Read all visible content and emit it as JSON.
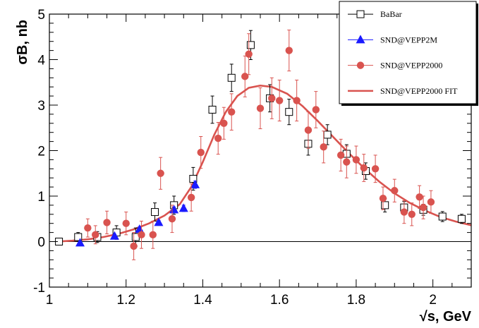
{
  "chart_data": {
    "type": "scatter",
    "title": "",
    "xlabel": "√s, GeV",
    "ylabel": "σB, nb",
    "xlim": [
      1.0,
      2.1
    ],
    "ylim": [
      -1,
      5
    ],
    "x_ticks": [
      "1",
      "1.2",
      "1.4",
      "1.6",
      "1.8",
      "2"
    ],
    "y_ticks": [
      "-1",
      "0",
      "1",
      "2",
      "3",
      "4",
      "5"
    ],
    "zero_line": 0,
    "grid": false,
    "legend_position": "top-right",
    "series": [
      {
        "name": "BaBar",
        "marker": "open-square",
        "color": "#000000",
        "points": [
          {
            "x": 1.025,
            "y": 0.0,
            "err": 0.05
          },
          {
            "x": 1.075,
            "y": 0.1,
            "err": 0.1
          },
          {
            "x": 1.125,
            "y": 0.1,
            "err": 0.12
          },
          {
            "x": 1.175,
            "y": 0.2,
            "err": 0.15
          },
          {
            "x": 1.225,
            "y": 0.1,
            "err": 0.2
          },
          {
            "x": 1.275,
            "y": 0.65,
            "err": 0.2
          },
          {
            "x": 1.325,
            "y": 0.8,
            "err": 0.2
          },
          {
            "x": 1.375,
            "y": 1.38,
            "err": 0.25
          },
          {
            "x": 1.425,
            "y": 2.9,
            "err": 0.3
          },
          {
            "x": 1.475,
            "y": 3.6,
            "err": 0.3
          },
          {
            "x": 1.525,
            "y": 4.32,
            "err": 0.32
          },
          {
            "x": 1.575,
            "y": 3.15,
            "err": 0.3
          },
          {
            "x": 1.625,
            "y": 2.85,
            "err": 0.28
          },
          {
            "x": 1.675,
            "y": 2.15,
            "err": 0.25
          },
          {
            "x": 1.725,
            "y": 2.35,
            "err": 0.22
          },
          {
            "x": 1.775,
            "y": 1.93,
            "err": 0.2
          },
          {
            "x": 1.825,
            "y": 1.55,
            "err": 0.18
          },
          {
            "x": 1.875,
            "y": 0.8,
            "err": 0.15
          },
          {
            "x": 1.925,
            "y": 0.75,
            "err": 0.13
          },
          {
            "x": 1.975,
            "y": 0.7,
            "err": 0.12
          },
          {
            "x": 2.025,
            "y": 0.55,
            "err": 0.11
          },
          {
            "x": 2.075,
            "y": 0.5,
            "err": 0.1
          }
        ]
      },
      {
        "name": "SND@VEPP2M",
        "marker": "filled-triangle",
        "color": "#1a1aff",
        "points": [
          {
            "x": 1.08,
            "y": -0.03,
            "err": 0.03
          },
          {
            "x": 1.17,
            "y": 0.12,
            "err": 0.04
          },
          {
            "x": 1.235,
            "y": 0.27,
            "err": 0.05
          },
          {
            "x": 1.285,
            "y": 0.42,
            "err": 0.05
          },
          {
            "x": 1.325,
            "y": 0.7,
            "err": 0.06
          },
          {
            "x": 1.35,
            "y": 0.73,
            "err": 0.07
          },
          {
            "x": 1.38,
            "y": 1.25,
            "err": 0.08
          }
        ]
      },
      {
        "name": "SND@VEPP2000",
        "marker": "filled-circle",
        "color": "#d9534f",
        "points": [
          {
            "x": 1.1,
            "y": 0.3,
            "err": 0.2
          },
          {
            "x": 1.12,
            "y": 0.15,
            "err": 0.2
          },
          {
            "x": 1.15,
            "y": 0.42,
            "err": 0.25
          },
          {
            "x": 1.2,
            "y": 0.4,
            "err": 0.25
          },
          {
            "x": 1.22,
            "y": -0.1,
            "err": 0.3
          },
          {
            "x": 1.24,
            "y": 0.15,
            "err": 0.3
          },
          {
            "x": 1.27,
            "y": 0.15,
            "err": 0.3
          },
          {
            "x": 1.29,
            "y": 1.5,
            "err": 0.35
          },
          {
            "x": 1.32,
            "y": 0.5,
            "err": 0.3
          },
          {
            "x": 1.37,
            "y": 0.97,
            "err": 0.3
          },
          {
            "x": 1.395,
            "y": 1.96,
            "err": 0.35
          },
          {
            "x": 1.44,
            "y": 2.27,
            "err": 0.35
          },
          {
            "x": 1.455,
            "y": 2.6,
            "err": 0.35
          },
          {
            "x": 1.475,
            "y": 2.85,
            "err": 0.4
          },
          {
            "x": 1.51,
            "y": 3.63,
            "err": 0.45
          },
          {
            "x": 1.52,
            "y": 4.12,
            "err": 0.45
          },
          {
            "x": 1.55,
            "y": 2.93,
            "err": 0.45
          },
          {
            "x": 1.58,
            "y": 3.15,
            "err": 0.45
          },
          {
            "x": 1.6,
            "y": 3.1,
            "err": 0.45
          },
          {
            "x": 1.625,
            "y": 4.2,
            "err": 0.45
          },
          {
            "x": 1.645,
            "y": 3.1,
            "err": 0.45
          },
          {
            "x": 1.675,
            "y": 2.45,
            "err": 0.4
          },
          {
            "x": 1.695,
            "y": 2.9,
            "err": 0.4
          },
          {
            "x": 1.715,
            "y": 2.08,
            "err": 0.35
          },
          {
            "x": 1.76,
            "y": 1.9,
            "err": 0.35
          },
          {
            "x": 1.775,
            "y": 1.75,
            "err": 0.35
          },
          {
            "x": 1.8,
            "y": 1.8,
            "err": 0.3
          },
          {
            "x": 1.82,
            "y": 1.62,
            "err": 0.3
          },
          {
            "x": 1.85,
            "y": 1.6,
            "err": 0.3
          },
          {
            "x": 1.87,
            "y": 0.95,
            "err": 0.25
          },
          {
            "x": 1.9,
            "y": 1.12,
            "err": 0.25
          },
          {
            "x": 1.925,
            "y": 0.65,
            "err": 0.25
          },
          {
            "x": 1.945,
            "y": 0.6,
            "err": 0.25
          },
          {
            "x": 1.965,
            "y": 0.98,
            "err": 0.25
          },
          {
            "x": 1.975,
            "y": 0.75,
            "err": 0.25
          },
          {
            "x": 1.995,
            "y": 0.87,
            "err": 0.25
          }
        ]
      },
      {
        "name": "SND@VEPP2000 FIT",
        "marker": "line",
        "color": "#d9534f",
        "points": [
          {
            "x": 1.02,
            "y": 0.0
          },
          {
            "x": 1.06,
            "y": 0.02
          },
          {
            "x": 1.1,
            "y": 0.05
          },
          {
            "x": 1.14,
            "y": 0.1
          },
          {
            "x": 1.18,
            "y": 0.17
          },
          {
            "x": 1.22,
            "y": 0.27
          },
          {
            "x": 1.26,
            "y": 0.4
          },
          {
            "x": 1.3,
            "y": 0.57
          },
          {
            "x": 1.34,
            "y": 0.82
          },
          {
            "x": 1.37,
            "y": 1.2
          },
          {
            "x": 1.4,
            "y": 1.75
          },
          {
            "x": 1.43,
            "y": 2.35
          },
          {
            "x": 1.46,
            "y": 2.85
          },
          {
            "x": 1.49,
            "y": 3.2
          },
          {
            "x": 1.52,
            "y": 3.38
          },
          {
            "x": 1.55,
            "y": 3.43
          },
          {
            "x": 1.58,
            "y": 3.4
          },
          {
            "x": 1.62,
            "y": 3.25
          },
          {
            "x": 1.66,
            "y": 2.98
          },
          {
            "x": 1.7,
            "y": 2.65
          },
          {
            "x": 1.74,
            "y": 2.3
          },
          {
            "x": 1.78,
            "y": 1.95
          },
          {
            "x": 1.82,
            "y": 1.62
          },
          {
            "x": 1.86,
            "y": 1.32
          },
          {
            "x": 1.9,
            "y": 1.06
          },
          {
            "x": 1.94,
            "y": 0.85
          },
          {
            "x": 1.98,
            "y": 0.68
          },
          {
            "x": 2.02,
            "y": 0.54
          },
          {
            "x": 2.06,
            "y": 0.44
          },
          {
            "x": 2.1,
            "y": 0.36
          }
        ]
      }
    ]
  }
}
